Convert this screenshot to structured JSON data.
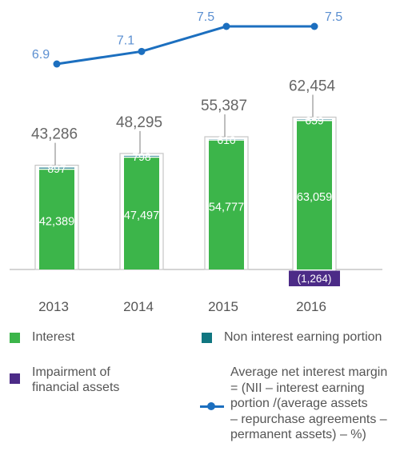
{
  "chart_data": {
    "type": "bar",
    "stacked": true,
    "categories": [
      "2013",
      "2014",
      "2015",
      "2016"
    ],
    "totals": [
      "43,286",
      "48,295",
      "55,387",
      "62,454"
    ],
    "series": [
      {
        "name": "Interest",
        "values": [
          42389,
          47497,
          54777,
          63059
        ],
        "labels": [
          "42,389",
          "47,497",
          "54,777",
          "63,059"
        ],
        "color": "#3cb54a"
      },
      {
        "name": "Non interest earning portion",
        "values": [
          897,
          798,
          610,
          659
        ],
        "labels": [
          "897",
          "798",
          "610",
          "659"
        ],
        "color": "#107680"
      },
      {
        "name": "Impairment of financial assets",
        "values": [
          0,
          0,
          0,
          -1264
        ],
        "labels": [
          "",
          "",
          "",
          "(1,264)"
        ],
        "color": "#4c2b87"
      }
    ],
    "line": {
      "name": "Average net interest margin = (NII – interest earning portion /(average assets – repurchase agreements – permanent assets) – %)",
      "values": [
        6.9,
        7.1,
        7.5,
        7.5
      ],
      "labels": [
        "6.9",
        "7.1",
        "7.5",
        "7.5"
      ],
      "color": "#1c6fbf",
      "label_color": "#5b8fd1"
    },
    "ylim": [
      -4000,
      70000
    ],
    "line_ylim": [
      6.6,
      7.8
    ],
    "grid": false,
    "legend_position": "bottom"
  },
  "legend": {
    "interest": "Interest",
    "non_interest": "Non interest earning portion",
    "impairment": [
      "Impairment of",
      "financial assets"
    ],
    "nim": [
      "Average net interest margin",
      "= (NII – interest earning",
      "portion /(average assets",
      "– repurchase agreements –",
      "permanent assets) – %)"
    ]
  },
  "colors": {
    "interest": "#3cb54a",
    "non_interest": "#107680",
    "impairment": "#4c2b87",
    "line": "#1c6fbf",
    "axis": "#aaaaaa",
    "text": "#555555",
    "total_label": "#666666"
  }
}
